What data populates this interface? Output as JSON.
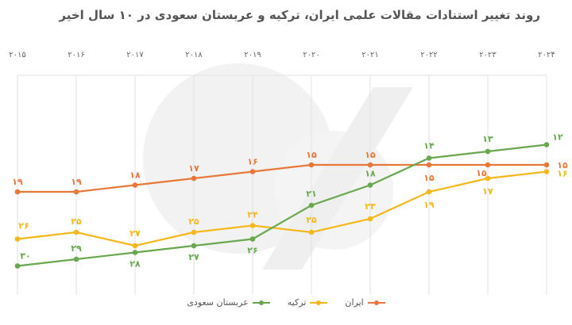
{
  "chart_data": {
    "type": "line",
    "title": "روند تغییر استنادات مقالات علمی ایران، ترکیه و عربستان سعودی در ۱۰ سال اخیر",
    "categories": [
      "۲۰۱۵",
      "۲۰۱۶",
      "۲۰۱۷",
      "۲۰۱۸",
      "۲۰۱۹",
      "۲۰۲۰",
      "۲۰۲۱",
      "۲۰۲۲",
      "۲۰۲۳",
      "۲۰۲۴"
    ],
    "x_axis_position": "top",
    "y_axis": {
      "inverted": true,
      "visible": false,
      "range": [
        12,
        30
      ]
    },
    "grid": "vertical",
    "legend_position": "bottom",
    "series": [
      {
        "name": "ایران",
        "color": "#e8773a",
        "values": [
          19,
          19,
          18,
          17,
          16,
          15,
          15,
          15,
          15,
          15
        ],
        "labels": [
          "۱۹",
          "۱۹",
          "۱۸",
          "۱۷",
          "۱۶",
          "۱۵",
          "۱۵",
          "۱۵",
          "۱۵",
          "۱۵"
        ]
      },
      {
        "name": "ترکیه",
        "color": "#f5b81c",
        "values": [
          26,
          25,
          27,
          25,
          24,
          25,
          23,
          19,
          17,
          16
        ],
        "labels": [
          "۲۶",
          "۲۵",
          "۲۷",
          "۲۵",
          "۲۴",
          "۲۵",
          "۲۳",
          "۱۹",
          "۱۷",
          "۱۶"
        ]
      },
      {
        "name": "عربستان سعودی",
        "color": "#6aa84f",
        "values": [
          30,
          29,
          28,
          27,
          26,
          21,
          18,
          14,
          13,
          12
        ],
        "labels": [
          "۳۰",
          "۲۹",
          "۲۸",
          "۲۷",
          "۲۶",
          "۲۱",
          "۱۸",
          "۱۴",
          "۱۳",
          "۱۲"
        ]
      }
    ]
  }
}
